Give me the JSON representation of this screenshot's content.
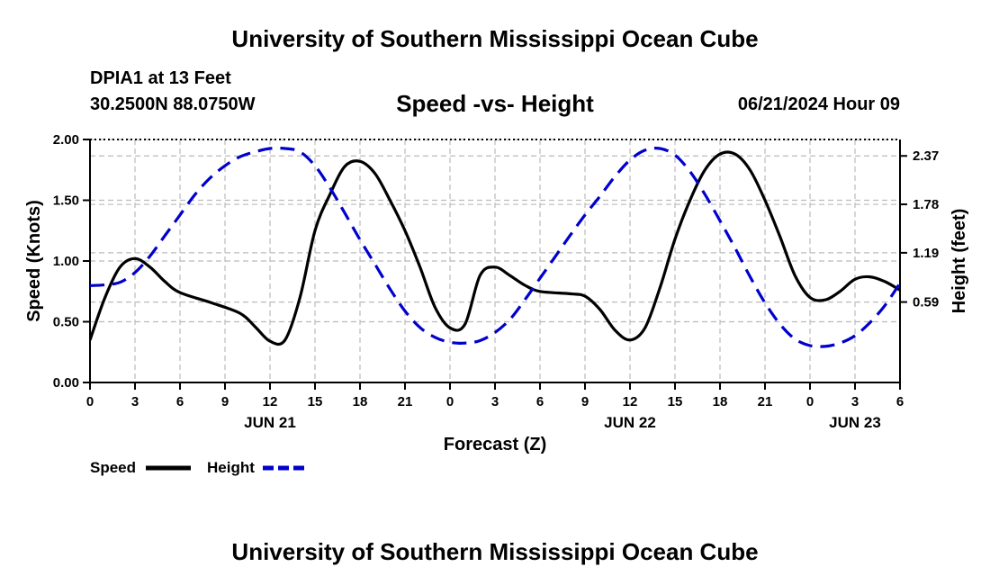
{
  "header": {
    "title": "University of Southern Mississippi Ocean Cube",
    "station": "DPIA1 at 13 Feet",
    "coordinates": "30.2500N  88.0750W",
    "subtitle": "Speed -vs- Height",
    "datetime": "06/21/2024 Hour 09"
  },
  "footer": {
    "title": "University of Southern Mississippi Ocean Cube"
  },
  "colors": {
    "speed": "#000000",
    "height": "#0000cc",
    "grid": "#bbbbbb"
  },
  "chart_data": {
    "type": "line",
    "xlabel": "Forecast (Z)",
    "ylabel": "Speed (Knots)",
    "y2label": "Height (feet)",
    "xlim": [
      0,
      54
    ],
    "ylim": [
      0,
      2.0
    ],
    "y2lim": [
      -0.39,
      2.57
    ],
    "x_ticks": [
      0,
      3,
      6,
      9,
      12,
      15,
      18,
      21,
      24,
      27,
      30,
      33,
      36,
      39,
      42,
      45,
      48,
      51,
      54
    ],
    "x_tick_labels": [
      "0",
      "3",
      "6",
      "9",
      "12",
      "15",
      "18",
      "21",
      "0",
      "3",
      "6",
      "9",
      "12",
      "15",
      "18",
      "21",
      "0",
      "3",
      "6"
    ],
    "date_labels": [
      {
        "x": 12,
        "label": "JUN 21"
      },
      {
        "x": 36,
        "label": "JUN 22"
      },
      {
        "x": 51,
        "label": "JUN 23"
      }
    ],
    "y_ticks": [
      0.0,
      0.5,
      1.0,
      1.5,
      2.0
    ],
    "y_tick_labels": [
      "0.00",
      "0.50",
      "1.00",
      "1.50",
      "2.00"
    ],
    "y2_ticks": [
      0.59,
      1.19,
      1.78,
      2.37
    ],
    "y2_tick_labels": [
      "0.59",
      "1.19",
      "1.78",
      "2.37"
    ],
    "grid": true,
    "legend": {
      "position": "bottom-left",
      "entries": [
        {
          "label": "Speed",
          "style": "solid"
        },
        {
          "label": "Height",
          "style": "dashed"
        }
      ]
    },
    "series": [
      {
        "name": "Speed",
        "axis": "left",
        "x": [
          0,
          1,
          2,
          3,
          4,
          5,
          6,
          8,
          10,
          11,
          12,
          13,
          14,
          15,
          16,
          17,
          18,
          19,
          20,
          21,
          22,
          23,
          24,
          25,
          26,
          27,
          28,
          29,
          30,
          32,
          33,
          34,
          35,
          36,
          37,
          38,
          39,
          40,
          41,
          42,
          43,
          44,
          45,
          46,
          47,
          48,
          49,
          50,
          51,
          52,
          53,
          54
        ],
        "values": [
          0.35,
          0.7,
          0.95,
          1.02,
          0.95,
          0.83,
          0.74,
          0.66,
          0.57,
          0.46,
          0.34,
          0.35,
          0.7,
          1.25,
          1.55,
          1.78,
          1.82,
          1.72,
          1.5,
          1.25,
          0.95,
          0.62,
          0.45,
          0.48,
          0.88,
          0.95,
          0.88,
          0.8,
          0.75,
          0.73,
          0.71,
          0.6,
          0.43,
          0.35,
          0.45,
          0.78,
          1.18,
          1.5,
          1.75,
          1.88,
          1.88,
          1.75,
          1.5,
          1.2,
          0.88,
          0.7,
          0.68,
          0.75,
          0.85,
          0.87,
          0.83,
          0.76
        ]
      },
      {
        "name": "Height",
        "axis": "right",
        "x": [
          0,
          1,
          2,
          3,
          4,
          5,
          6,
          7,
          8,
          9,
          10,
          11,
          12,
          13,
          14,
          15,
          16,
          17,
          18,
          19,
          20,
          21,
          22,
          23,
          24,
          25,
          26,
          27,
          28,
          29,
          30,
          31,
          32,
          33,
          34,
          35,
          36,
          37,
          38,
          39,
          40,
          41,
          42,
          43,
          44,
          45,
          46,
          47,
          48,
          49,
          50,
          51,
          52,
          53,
          54
        ],
        "values": [
          0.79,
          0.8,
          0.83,
          0.95,
          1.15,
          1.4,
          1.65,
          1.9,
          2.1,
          2.25,
          2.36,
          2.42,
          2.46,
          2.46,
          2.42,
          2.25,
          1.98,
          1.67,
          1.35,
          1.05,
          0.75,
          0.48,
          0.28,
          0.16,
          0.1,
          0.09,
          0.12,
          0.22,
          0.38,
          0.62,
          0.88,
          1.14,
          1.4,
          1.65,
          1.88,
          2.12,
          2.32,
          2.44,
          2.46,
          2.38,
          2.18,
          1.9,
          1.58,
          1.25,
          0.9,
          0.58,
          0.32,
          0.14,
          0.06,
          0.05,
          0.09,
          0.18,
          0.34,
          0.55,
          0.82
        ]
      }
    ]
  }
}
